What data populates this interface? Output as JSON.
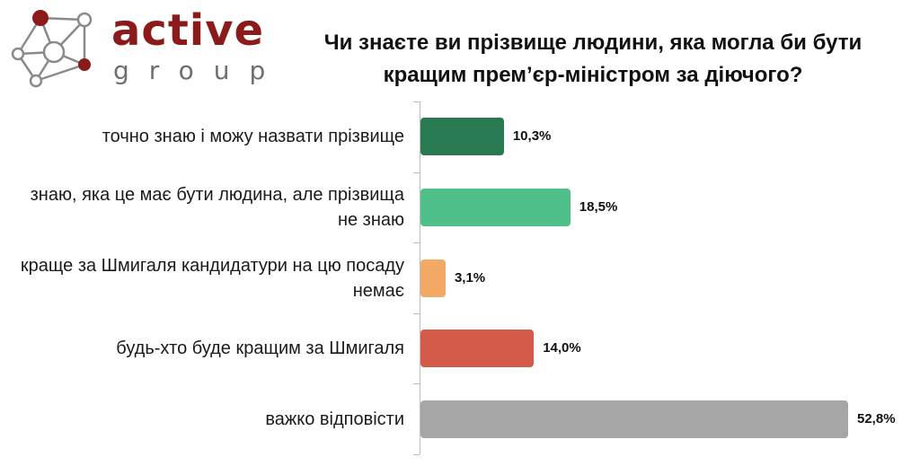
{
  "logo": {
    "word": "active",
    "sub": "group"
  },
  "chart_data": {
    "type": "bar",
    "orientation": "horizontal",
    "title": "Чи знаєте ви прізвище людини, яка могла би бути кращим прем’єр-міністром за діючого?",
    "categories": [
      "точно знаю і можу назвати прізвище",
      "знаю, яка це має бути людина, але прізвища не знаю",
      "краще за Шмигаля кандидатури на цю посаду немає",
      "будь-хто буде кращим за Шмигаля",
      "важко відповісти"
    ],
    "values": [
      10.3,
      18.5,
      3.1,
      14.0,
      52.8
    ],
    "value_labels": [
      "10,3%",
      "18,5%",
      "3,1%",
      "14,0%",
      "52,8%"
    ],
    "colors": [
      "#277a52",
      "#4fbf89",
      "#f2a965",
      "#d45a4a",
      "#a6a6a6"
    ],
    "xlim": [
      0,
      55
    ],
    "grid": false,
    "legend": "none"
  }
}
